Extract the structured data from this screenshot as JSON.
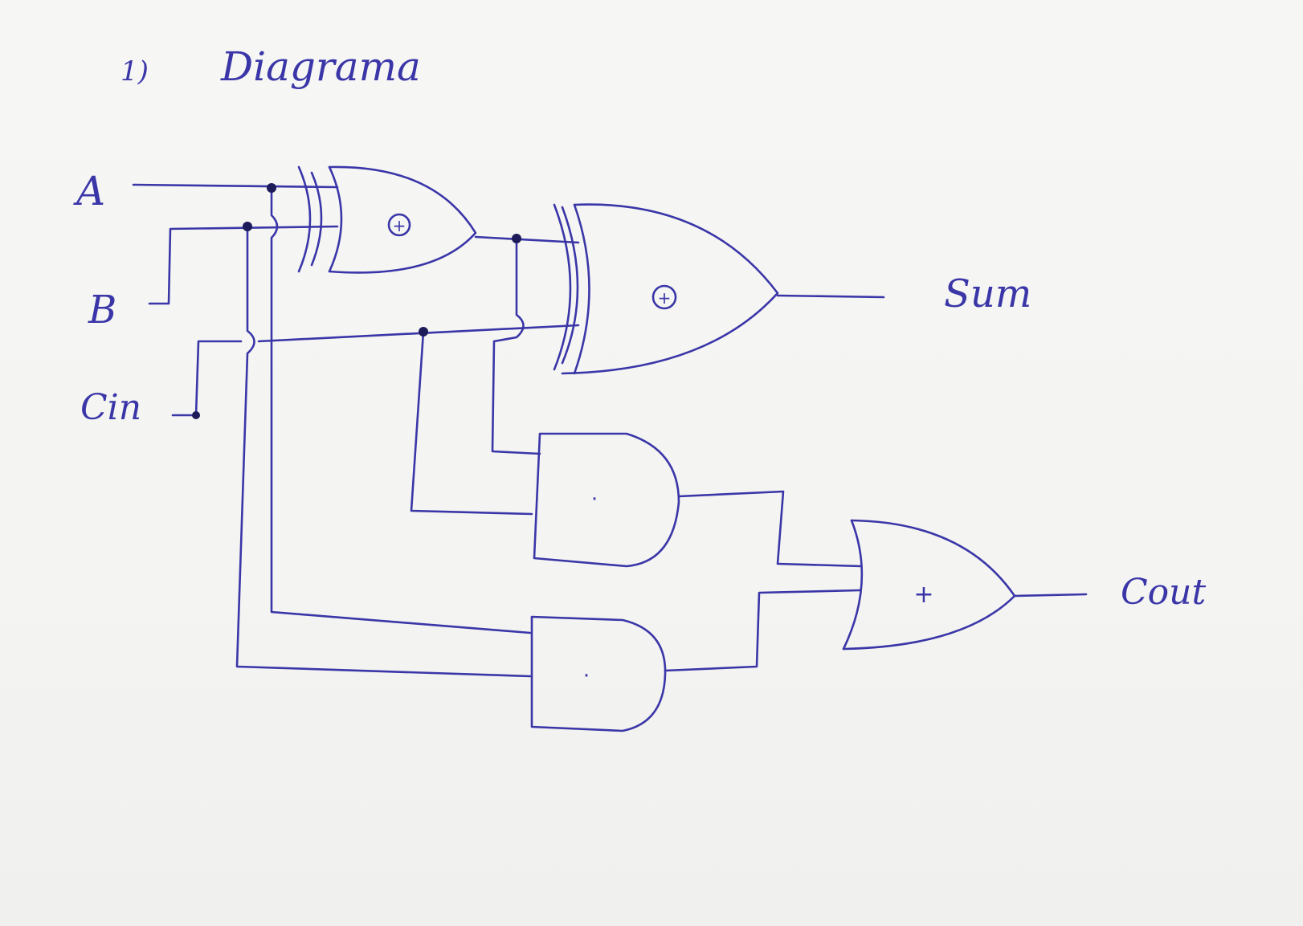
{
  "heading": {
    "number": "1)",
    "title": "Diagrama"
  },
  "inputs": {
    "a": "A",
    "b": "B",
    "cin": "Cin"
  },
  "outputs": {
    "sum": "Sum",
    "cout": "Cout"
  },
  "gate_symbols": {
    "xor": "⊕",
    "and": "·",
    "or": "+"
  },
  "colors": {
    "ink": "#3a36a8",
    "paper": "#f4f4f2"
  }
}
